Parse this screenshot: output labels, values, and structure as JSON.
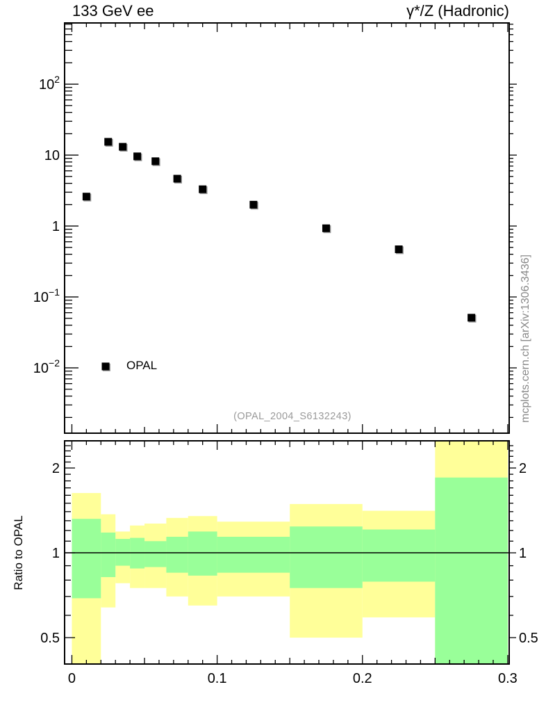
{
  "header": {
    "left_title": "133 GeV ee",
    "right_title": "γ*/Z (Hadronic)"
  },
  "main_panel": {
    "watermark": "(OPAL_2004_S6132243)",
    "legend": {
      "label": "OPAL",
      "marker": "filled-square"
    }
  },
  "ratio_panel": {
    "ylabel": "Ratio to OPAL"
  },
  "side_note": "mcplots.cern.ch [arXiv:1306.3436]",
  "colors": {
    "frame": "#000000",
    "marker": "#000000",
    "marker_shadow": "#999999",
    "band_outer": "#ffff99",
    "band_inner": "#99ff99",
    "watermark": "#9a9a9a",
    "side_note": "#888888"
  },
  "chart_data": [
    {
      "type": "scatter",
      "panel": "main",
      "yscale": "log",
      "xlim": [
        -0.005,
        0.301
      ],
      "ylim": [
        0.0012,
        730
      ],
      "grid": false,
      "x_minor_step": 0.01,
      "y_tick_labels": [
        {
          "value": 100,
          "base": "10",
          "exp": "2"
        },
        {
          "value": 10,
          "base": "10",
          "exp": ""
        },
        {
          "value": 1,
          "base": "1",
          "exp": ""
        },
        {
          "value": 0.1,
          "base": "10",
          "exp": "−1"
        },
        {
          "value": 0.01,
          "base": "10",
          "exp": "−2"
        }
      ],
      "legend_entries": [
        {
          "label": "OPAL",
          "marker": "filled-square",
          "color": "#000000"
        }
      ],
      "series": [
        {
          "name": "OPAL",
          "marker": "filled-square",
          "color": "#000000",
          "x": [
            0.01,
            0.025,
            0.035,
            0.045,
            0.0575,
            0.0725,
            0.09,
            0.125,
            0.175,
            0.225,
            0.275
          ],
          "y": [
            2.6,
            15.4,
            13.1,
            9.6,
            8.2,
            4.65,
            3.3,
            2.0,
            0.93,
            0.47,
            0.051
          ]
        }
      ]
    },
    {
      "type": "band-ratio",
      "panel": "ratio",
      "ylabel": "Ratio to OPAL",
      "yscale": "log",
      "xlim": [
        -0.005,
        0.301
      ],
      "ylim": [
        0.403,
        2.497
      ],
      "reference_line": 1,
      "y_tick_labels": [
        {
          "value": 2,
          "label": "2"
        },
        {
          "value": 1,
          "label": "1"
        },
        {
          "value": 0.5,
          "label": "0.5"
        }
      ],
      "y_minor_ticks": [
        0.6,
        0.7,
        0.8,
        0.9,
        1.1,
        1.2,
        1.3,
        1.4,
        1.5,
        1.6,
        1.7,
        1.8,
        1.9,
        2.1,
        2.2,
        2.3,
        2.4
      ],
      "x_tick_labels": [
        {
          "value": 0,
          "label": "0"
        },
        {
          "value": 0.1,
          "label": "0.1"
        },
        {
          "value": 0.2,
          "label": "0.2"
        },
        {
          "value": 0.3,
          "label": "0.3"
        }
      ],
      "bands": {
        "outer_label": "total uncertainty band",
        "inner_label": "inner uncertainty band",
        "bins": [
          {
            "xlo": 0.0,
            "xhi": 0.02,
            "outer": [
              0.4,
              1.63
            ],
            "inner": [
              0.69,
              1.32
            ]
          },
          {
            "xlo": 0.02,
            "xhi": 0.03,
            "outer": [
              0.64,
              1.37
            ],
            "inner": [
              0.82,
              1.18
            ]
          },
          {
            "xlo": 0.03,
            "xhi": 0.04,
            "outer": [
              0.78,
              1.19
            ],
            "inner": [
              0.9,
              1.12
            ]
          },
          {
            "xlo": 0.04,
            "xhi": 0.05,
            "outer": [
              0.75,
              1.25
            ],
            "inner": [
              0.88,
              1.13
            ]
          },
          {
            "xlo": 0.05,
            "xhi": 0.065,
            "outer": [
              0.75,
              1.27
            ],
            "inner": [
              0.89,
              1.1
            ]
          },
          {
            "xlo": 0.065,
            "xhi": 0.08,
            "outer": [
              0.7,
              1.33
            ],
            "inner": [
              0.85,
              1.14
            ]
          },
          {
            "xlo": 0.08,
            "xhi": 0.1,
            "outer": [
              0.65,
              1.35
            ],
            "inner": [
              0.83,
              1.19
            ]
          },
          {
            "xlo": 0.1,
            "xhi": 0.15,
            "outer": [
              0.7,
              1.29
            ],
            "inner": [
              0.85,
              1.14
            ]
          },
          {
            "xlo": 0.15,
            "xhi": 0.2,
            "outer": [
              0.5,
              1.49
            ],
            "inner": [
              0.75,
              1.24
            ]
          },
          {
            "xlo": 0.2,
            "xhi": 0.25,
            "outer": [
              0.59,
              1.41
            ],
            "inner": [
              0.79,
              1.21
            ]
          },
          {
            "xlo": 0.25,
            "xhi": 0.3,
            "outer": [
              0.4,
              2.5
            ],
            "inner": [
              0.4,
              1.85
            ]
          }
        ]
      }
    }
  ]
}
